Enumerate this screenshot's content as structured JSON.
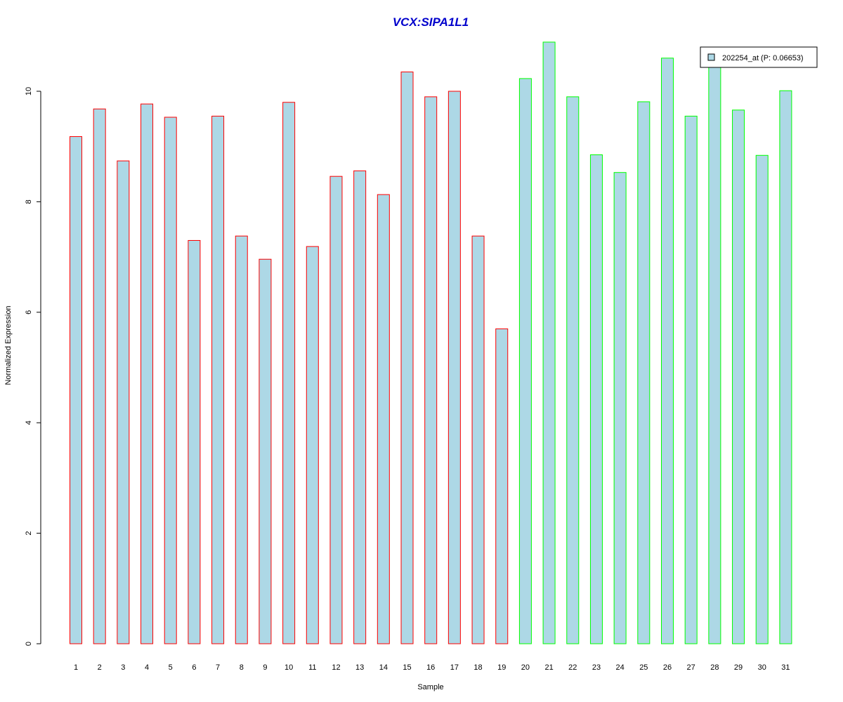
{
  "chart_data": {
    "type": "bar",
    "title": "VCX:SIPA1L1",
    "xlabel": "Sample",
    "ylabel": "Normalized Expression",
    "ylim": [
      0,
      11
    ],
    "yticks": [
      "0",
      "2",
      "4",
      "6",
      "8",
      "10"
    ],
    "grid": false,
    "legend_position": "top-right",
    "categories": [
      "1",
      "2",
      "3",
      "4",
      "5",
      "6",
      "7",
      "8",
      "9",
      "10",
      "11",
      "12",
      "13",
      "14",
      "15",
      "16",
      "17",
      "18",
      "19",
      "20",
      "21",
      "22",
      "23",
      "24",
      "25",
      "26",
      "27",
      "28",
      "29",
      "30",
      "31"
    ],
    "series": [
      {
        "name": "202254_at (P: 0.06653)",
        "values": [
          9.18,
          9.68,
          8.74,
          9.77,
          9.53,
          7.3,
          9.55,
          7.38,
          6.96,
          9.8,
          7.19,
          8.46,
          8.56,
          8.13,
          10.35,
          9.9,
          10.0,
          7.38,
          5.7,
          10.23,
          10.89,
          9.9,
          8.85,
          8.53,
          9.81,
          10.6,
          9.55,
          10.55,
          9.66,
          8.84,
          10.01
        ]
      }
    ],
    "group_of_bar": [
      "red",
      "red",
      "red",
      "red",
      "red",
      "red",
      "red",
      "red",
      "red",
      "red",
      "red",
      "red",
      "red",
      "red",
      "red",
      "red",
      "red",
      "red",
      "red",
      "green",
      "green",
      "green",
      "green",
      "green",
      "green",
      "green",
      "green",
      "green",
      "green",
      "green",
      "green"
    ],
    "colors": {
      "bar_fill": "#add8e6",
      "group_red": "#ff0000",
      "group_green": "#00ff00",
      "title": "#0000cc",
      "axis": "#000000"
    }
  }
}
